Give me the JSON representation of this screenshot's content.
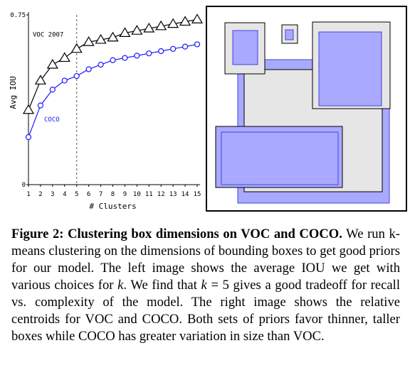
{
  "chart_data": {
    "type": "line",
    "xlabel": "# Clusters",
    "ylabel": "Avg IOU",
    "x": [
      1,
      2,
      3,
      4,
      5,
      6,
      7,
      8,
      9,
      10,
      11,
      12,
      13,
      14,
      15
    ],
    "x_tick_labels": [
      "1",
      "2",
      "3",
      "4",
      "5",
      "6",
      "7",
      "8",
      "9",
      "10",
      "11",
      "12",
      "13",
      "14",
      "15"
    ],
    "y_tick_labels": [
      "0",
      "0.75"
    ],
    "ylim": [
      0,
      0.75
    ],
    "xlim": [
      1,
      15
    ],
    "grid": false,
    "vertical_marker_x": 5,
    "series": [
      {
        "name": "VOC 2007",
        "marker": "triangle",
        "values": [
          0.33,
          0.46,
          0.53,
          0.56,
          0.6,
          0.63,
          0.64,
          0.65,
          0.67,
          0.68,
          0.69,
          0.7,
          0.71,
          0.72,
          0.73
        ]
      },
      {
        "name": "COCO",
        "marker": "circle",
        "values": [
          0.21,
          0.35,
          0.42,
          0.46,
          0.48,
          0.51,
          0.53,
          0.55,
          0.56,
          0.57,
          0.58,
          0.59,
          0.6,
          0.61,
          0.62
        ]
      }
    ]
  },
  "colors": {
    "voc": "#000000",
    "coco": "#1a1aff",
    "voc_box_fill": "#e8e8e8",
    "coco_box_fill": "#a9a9ff",
    "coco_box_stroke": "#5555ee"
  },
  "caption": {
    "label": "Figure 2:",
    "title": "Clustering box dimensions on VOC and COCO.",
    "text_1": "We run k-means clustering on the dimensions of bounding boxes to get good priors for our model. The left image shows the average IOU we get with various choices for ",
    "var_k1": "k",
    "text_2": ". We find that ",
    "var_k2": "k",
    "text_3": " = 5 gives a good tradeoff for recall vs. complexity of the model. The right image shows the relative centroids for VOC and COCO. Both sets of priors favor thinner, taller boxes while COCO has greater variation in size than VOC."
  }
}
